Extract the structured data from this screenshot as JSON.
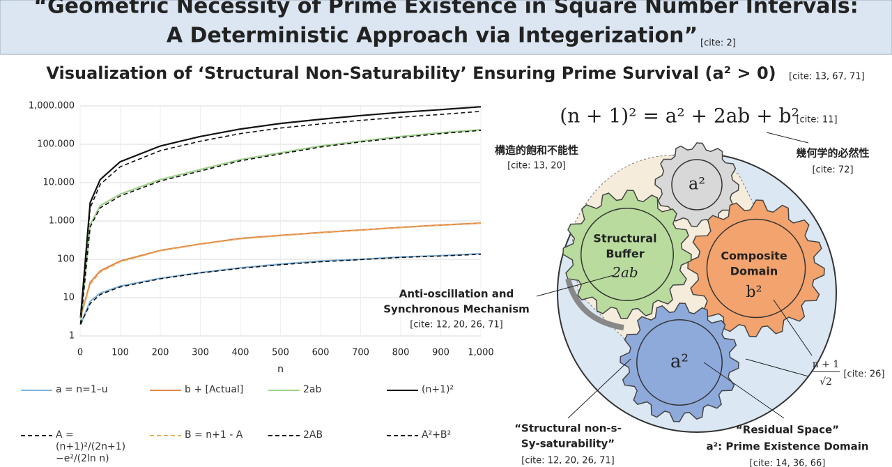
{
  "header": {
    "title_line1": "“Geometric Necessity of Prime Existence in Square Number Intervals:",
    "title_line2": "A Deterministic Approach via Integerization”",
    "title_cite": "[cite: 2]"
  },
  "subtitle": {
    "text": "Visualization of ‘Structural Non-Saturability’ Ensuring Prime Survival (a² > 0)",
    "cite": "[cite: 13, 67, 71]"
  },
  "chart_data": {
    "type": "line",
    "xlabel": "n",
    "x": [
      1,
      25,
      50,
      100,
      200,
      300,
      400,
      500,
      600,
      700,
      800,
      900,
      1000
    ],
    "xlim": [
      0,
      1000
    ],
    "xticks": [
      0,
      100,
      200,
      300,
      400,
      500,
      600,
      700,
      800,
      900,
      {
        "value": 1000,
        "label": "1,000"
      }
    ],
    "ylim": [
      1,
      1000000
    ],
    "log_y": true,
    "grid": true,
    "yticks": [
      1,
      10,
      100,
      {
        "value": 1000,
        "label": "1.000"
      },
      {
        "value": 10000,
        "label": "10.000"
      },
      {
        "value": 100000,
        "label": "100.000"
      },
      {
        "value": 1000000,
        "label": "1,000.000"
      }
    ],
    "series": [
      {
        "name": "a = n=1–u",
        "color": "#7fb2dc",
        "dash": false,
        "values": [
          2,
          8,
          13,
          20,
          32,
          45,
          60,
          75,
          90,
          100,
          115,
          125,
          140
        ]
      },
      {
        "name": "b + [Actual]",
        "color": "#e0874a",
        "dash": false,
        "values": [
          3,
          25,
          50,
          90,
          170,
          250,
          350,
          420,
          500,
          580,
          680,
          780,
          880
        ]
      },
      {
        "name": "2ab",
        "color": "#9fd08a",
        "dash": false,
        "values": [
          2,
          800,
          2500,
          5000,
          12000,
          22000,
          40000,
          60000,
          90000,
          120000,
          160000,
          200000,
          240000
        ]
      },
      {
        "name": "(n+1)²",
        "color": "#111111",
        "dash": false,
        "values": [
          3,
          3000,
          12000,
          35000,
          90000,
          160000,
          250000,
          350000,
          450000,
          560000,
          680000,
          800000,
          950000
        ]
      },
      {
        "name": "A = (n+1)²/(2n+1) −e²/(2ln n)",
        "color": "#111111",
        "dash": true,
        "values": [
          2,
          7,
          12,
          19,
          31,
          44,
          58,
          72,
          86,
          98,
          112,
          122,
          135
        ]
      },
      {
        "name": "B = n+1 - A",
        "color": "#e8b060",
        "dash": true,
        "values": [
          3,
          22,
          46,
          85,
          165,
          245,
          340,
          410,
          490,
          570,
          665,
          765,
          860
        ]
      },
      {
        "name": "2AB",
        "color": "#111111",
        "dash": true,
        "values": [
          2,
          700,
          2200,
          4500,
          11000,
          20000,
          37000,
          56000,
          85000,
          115000,
          150000,
          190000,
          230000
        ]
      },
      {
        "name": "A²+B²",
        "color": "#111111",
        "dash": true,
        "values": [
          2,
          2200,
          9000,
          26000,
          68000,
          120000,
          190000,
          265000,
          340000,
          420000,
          510000,
          600000,
          720000
        ]
      }
    ]
  },
  "diagram": {
    "equation": "(n + 1)² = a² + 2ab + b²",
    "equation_cite": "[cite: 11]",
    "left_jp": "構造的飽和不能性",
    "left_jp_cite": "[cite: 13, 20]",
    "right_jp": "幾何学的必然性",
    "right_jp_cite": "[cite: 72]",
    "gray_gear": "a²",
    "green_gear_line1": "Structural",
    "green_gear_line2": "Buffer",
    "green_gear_math": "2ab",
    "orange_gear_line1": "Composite",
    "orange_gear_line2": "Domain",
    "orange_gear_math": "b²",
    "blue_gear": "a²",
    "anti_line1": "Anti-oscillation and",
    "anti_line2": "Synchronous Mechanism",
    "anti_cite": "[cite: 12, 20, 26, 71]",
    "radius_num": "n + 1",
    "radius_den": "√2",
    "radius_cite": "[cite: 26]",
    "nonsat_line1": "“Structural non-s-",
    "nonsat_line2": "Sy-saturability”",
    "nonsat_cite": "[cite: 12, 20, 26, 71]",
    "residual_line1": "“Residual Space”",
    "residual_line2": "a²: Prime Existence Domain",
    "residual_cite": "[cite: 14, 36, 66]"
  }
}
